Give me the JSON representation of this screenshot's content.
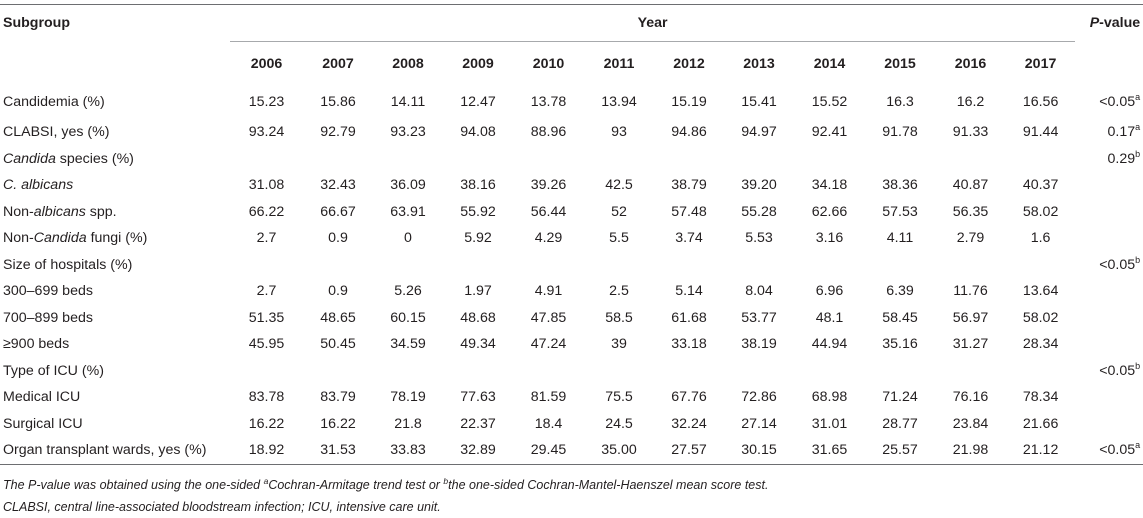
{
  "header": {
    "subgroup_label": "Subgroup",
    "year_label": "Year",
    "p_value_label_italic": "P",
    "p_value_label_rest": "-value",
    "years": [
      "2006",
      "2007",
      "2008",
      "2009",
      "2010",
      "2011",
      "2012",
      "2013",
      "2014",
      "2015",
      "2016",
      "2017"
    ]
  },
  "rows": [
    {
      "label": "Candidemia (%)",
      "values": [
        "15.23",
        "15.86",
        "14.11",
        "12.47",
        "13.78",
        "13.94",
        "15.19",
        "15.41",
        "15.52",
        "16.3",
        "16.2",
        "16.56"
      ],
      "p": "<0.05",
      "p_sup": "a"
    },
    {
      "label": "CLABSI, yes (%)",
      "values": [
        "93.24",
        "92.79",
        "93.23",
        "94.08",
        "88.96",
        "93",
        "94.86",
        "94.97",
        "92.41",
        "91.78",
        "91.33",
        "91.44"
      ],
      "p": "0.17",
      "p_sup": "a"
    },
    {
      "label_italic": "Candida",
      "label_rest": " species (%)",
      "values": [
        "",
        "",
        "",
        "",
        "",
        "",
        "",
        "",
        "",
        "",
        "",
        ""
      ],
      "p": "0.29",
      "p_sup": "b"
    },
    {
      "label_italic": "C. albicans",
      "values": [
        "31.08",
        "32.43",
        "36.09",
        "38.16",
        "39.26",
        "42.5",
        "38.79",
        "39.20",
        "34.18",
        "38.36",
        "40.87",
        "40.37"
      ],
      "p": "",
      "p_sup": ""
    },
    {
      "label_pre": "Non-",
      "label_italic": "albicans",
      "label_rest": " spp.",
      "values": [
        "66.22",
        "66.67",
        "63.91",
        "55.92",
        "56.44",
        "52",
        "57.48",
        "55.28",
        "62.66",
        "57.53",
        "56.35",
        "58.02"
      ],
      "p": "",
      "p_sup": ""
    },
    {
      "label_pre": "Non-",
      "label_italic": "Candida",
      "label_rest": " fungi (%)",
      "values": [
        "2.7",
        "0.9",
        "0",
        "5.92",
        "4.29",
        "5.5",
        "3.74",
        "5.53",
        "3.16",
        "4.11",
        "2.79",
        "1.6"
      ],
      "p": "",
      "p_sup": ""
    },
    {
      "label": "Size of hospitals (%)",
      "values": [
        "",
        "",
        "",
        "",
        "",
        "",
        "",
        "",
        "",
        "",
        "",
        ""
      ],
      "p": "<0.05",
      "p_sup": "b"
    },
    {
      "label": "300–699 beds",
      "values": [
        "2.7",
        "0.9",
        "5.26",
        "1.97",
        "4.91",
        "2.5",
        "5.14",
        "8.04",
        "6.96",
        "6.39",
        "11.76",
        "13.64"
      ],
      "p": "",
      "p_sup": ""
    },
    {
      "label": "700–899 beds",
      "values": [
        "51.35",
        "48.65",
        "60.15",
        "48.68",
        "47.85",
        "58.5",
        "61.68",
        "53.77",
        "48.1",
        "58.45",
        "56.97",
        "58.02"
      ],
      "p": "",
      "p_sup": ""
    },
    {
      "label": "≥900 beds",
      "values": [
        "45.95",
        "50.45",
        "34.59",
        "49.34",
        "47.24",
        "39",
        "33.18",
        "38.19",
        "44.94",
        "35.16",
        "31.27",
        "28.34"
      ],
      "p": "",
      "p_sup": ""
    },
    {
      "label": "Type of ICU (%)",
      "values": [
        "",
        "",
        "",
        "",
        "",
        "",
        "",
        "",
        "",
        "",
        "",
        ""
      ],
      "p": "<0.05",
      "p_sup": "b"
    },
    {
      "label": "Medical ICU",
      "values": [
        "83.78",
        "83.79",
        "78.19",
        "77.63",
        "81.59",
        "75.5",
        "67.76",
        "72.86",
        "68.98",
        "71.24",
        "76.16",
        "78.34"
      ],
      "p": "",
      "p_sup": ""
    },
    {
      "label": "Surgical ICU",
      "values": [
        "16.22",
        "16.22",
        "21.8",
        "22.37",
        "18.4",
        "24.5",
        "32.24",
        "27.14",
        "31.01",
        "28.77",
        "23.84",
        "21.66"
      ],
      "p": "",
      "p_sup": ""
    },
    {
      "label": "Organ transplant wards, yes (%)",
      "values": [
        "18.92",
        "31.53",
        "33.83",
        "32.89",
        "29.45",
        "35.00",
        "27.57",
        "30.15",
        "31.65",
        "25.57",
        "21.98",
        "21.12"
      ],
      "p": "<0.05",
      "p_sup": "a"
    }
  ],
  "footnotes": {
    "line1_a": "The P-value was obtained using the one-sided ",
    "line1_sup_a": "a",
    "line1_b": "Cochran-Armitage trend test or ",
    "line1_sup_b": "b",
    "line1_c": "the one-sided Cochran-Mantel-Haenszel mean score test.",
    "line2": "CLABSI, central line-associated bloodstream infection; ICU, intensive care unit."
  }
}
